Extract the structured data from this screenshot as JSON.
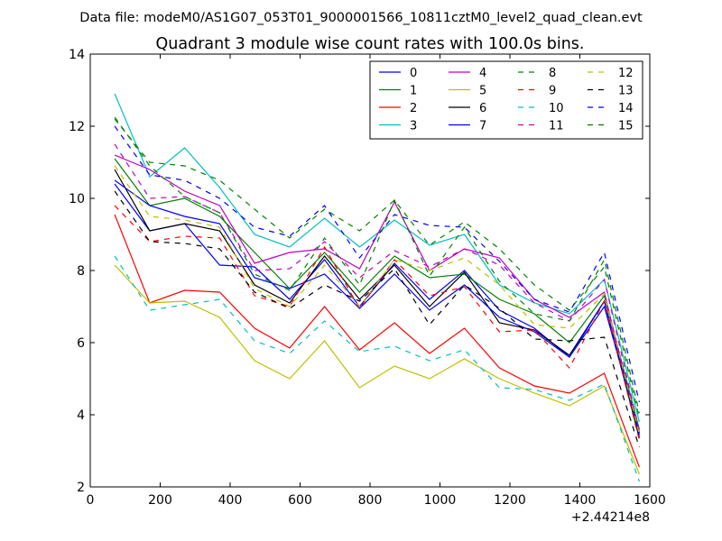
{
  "chart_data": {
    "type": "line",
    "suptitle": "Data file: modeM0/AS1G07_053T01_9000001566_10811cztM0_level2_quad_clean.evt",
    "title": "Quadrant 3 module wise count rates with 100.0s bins.",
    "xlabel": "",
    "ylabel": "",
    "x_offset_label": "+2.44214e8",
    "xlim": [
      0,
      1600
    ],
    "ylim": [
      2,
      14
    ],
    "xticks": [
      0,
      200,
      400,
      600,
      800,
      1000,
      1200,
      1400,
      1600
    ],
    "yticks": [
      2,
      4,
      6,
      8,
      10,
      12,
      14
    ],
    "grid": false,
    "legend_position": "top-right",
    "legend_columns": 4,
    "x": [
      70,
      170,
      270,
      370,
      470,
      570,
      670,
      770,
      870,
      970,
      1070,
      1170,
      1270,
      1370,
      1470,
      1570
    ],
    "series": [
      {
        "name": "0",
        "color": "#0000ff",
        "dash": "solid",
        "values": [
          10.4,
          9.1,
          9.3,
          8.15,
          8.1,
          7.2,
          8.3,
          7.0,
          8.2,
          7.2,
          8.0,
          6.9,
          6.4,
          5.6,
          7.0,
          3.5
        ]
      },
      {
        "name": "1",
        "color": "#008000",
        "dash": "solid",
        "values": [
          11.1,
          9.8,
          10.0,
          9.5,
          8.5,
          7.5,
          8.5,
          7.4,
          8.4,
          7.8,
          7.9,
          7.2,
          6.8,
          6.0,
          7.3,
          3.6
        ]
      },
      {
        "name": "2",
        "color": "#ff0000",
        "dash": "solid",
        "values": [
          9.55,
          7.1,
          7.45,
          7.4,
          6.4,
          5.85,
          7.0,
          5.8,
          6.55,
          5.7,
          6.4,
          5.3,
          4.8,
          4.6,
          5.15,
          2.55
        ]
      },
      {
        "name": "3",
        "color": "#00bfbf",
        "dash": "solid",
        "values": [
          12.9,
          10.6,
          11.4,
          10.3,
          9.0,
          8.65,
          9.45,
          8.65,
          9.4,
          8.7,
          9.0,
          7.6,
          7.1,
          6.8,
          7.75,
          3.8
        ]
      },
      {
        "name": "4",
        "color": "#bf00bf",
        "dash": "solid",
        "values": [
          11.2,
          10.8,
          10.2,
          9.8,
          8.2,
          8.5,
          8.6,
          8.05,
          9.9,
          8.0,
          8.6,
          8.35,
          7.2,
          6.7,
          7.4,
          3.4
        ]
      },
      {
        "name": "5",
        "color": "#bfbf00",
        "dash": "solid",
        "values": [
          8.15,
          7.1,
          7.15,
          6.7,
          5.5,
          5.0,
          6.05,
          4.75,
          5.35,
          5.0,
          5.55,
          5.0,
          4.6,
          4.25,
          4.8,
          2.35
        ]
      },
      {
        "name": "6",
        "color": "#000000",
        "dash": "solid",
        "values": [
          10.8,
          9.1,
          9.3,
          9.1,
          7.6,
          7.1,
          8.4,
          7.2,
          8.15,
          7.0,
          7.95,
          6.55,
          6.35,
          5.65,
          7.15,
          3.35
        ]
      },
      {
        "name": "7",
        "color": "#0000ff",
        "dash": "solid",
        "values": [
          10.5,
          9.8,
          9.5,
          9.3,
          7.8,
          7.5,
          7.9,
          6.95,
          7.9,
          6.9,
          7.6,
          6.7,
          6.3,
          5.6,
          7.15,
          3.45
        ]
      },
      {
        "name": "8",
        "color": "#008000",
        "dash": "dashed",
        "values": [
          12.2,
          11.0,
          10.9,
          10.5,
          9.7,
          8.9,
          9.7,
          9.1,
          9.95,
          8.7,
          9.35,
          8.6,
          7.6,
          6.9,
          8.1,
          3.9
        ]
      },
      {
        "name": "9",
        "color": "#ff0000",
        "dash": "dashed",
        "values": [
          9.8,
          8.8,
          8.95,
          8.9,
          7.3,
          7.0,
          8.65,
          6.95,
          8.3,
          7.3,
          7.55,
          6.3,
          6.35,
          5.3,
          7.15,
          3.3
        ]
      },
      {
        "name": "10",
        "color": "#00bfbf",
        "dash": "dashed",
        "values": [
          8.4,
          6.9,
          7.05,
          7.2,
          6.05,
          5.7,
          6.6,
          5.75,
          5.9,
          5.5,
          5.8,
          4.75,
          4.7,
          4.4,
          4.85,
          2.15
        ]
      },
      {
        "name": "11",
        "color": "#bf00bf",
        "dash": "dashed",
        "values": [
          11.5,
          10.0,
          10.05,
          9.6,
          8.0,
          8.05,
          8.8,
          7.8,
          8.55,
          8.1,
          8.6,
          8.15,
          7.1,
          6.6,
          7.75,
          3.55
        ]
      },
      {
        "name": "12",
        "color": "#bfbf00",
        "dash": "dashed",
        "values": [
          10.9,
          9.5,
          9.4,
          9.2,
          7.5,
          7.0,
          8.15,
          7.0,
          8.3,
          8.0,
          8.35,
          7.6,
          6.5,
          6.4,
          7.35,
          3.45
        ]
      },
      {
        "name": "13",
        "color": "#000000",
        "dash": "dashed",
        "values": [
          10.2,
          8.8,
          8.75,
          8.6,
          7.4,
          6.95,
          7.6,
          7.15,
          8.05,
          6.5,
          7.6,
          6.95,
          6.1,
          6.05,
          6.15,
          3.1
        ]
      },
      {
        "name": "14",
        "color": "#0000ff",
        "dash": "dashed",
        "values": [
          12.0,
          10.65,
          10.5,
          10.0,
          9.2,
          8.95,
          9.8,
          8.35,
          9.55,
          9.25,
          9.2,
          8.25,
          7.2,
          6.85,
          8.5,
          4.35
        ]
      },
      {
        "name": "15",
        "color": "#008000",
        "dash": "dashed",
        "values": [
          12.25,
          10.9,
          10.05,
          9.6,
          7.9,
          7.45,
          8.9,
          7.6,
          9.95,
          7.85,
          9.2,
          7.7,
          6.8,
          6.6,
          8.3,
          4.05
        ]
      }
    ]
  }
}
